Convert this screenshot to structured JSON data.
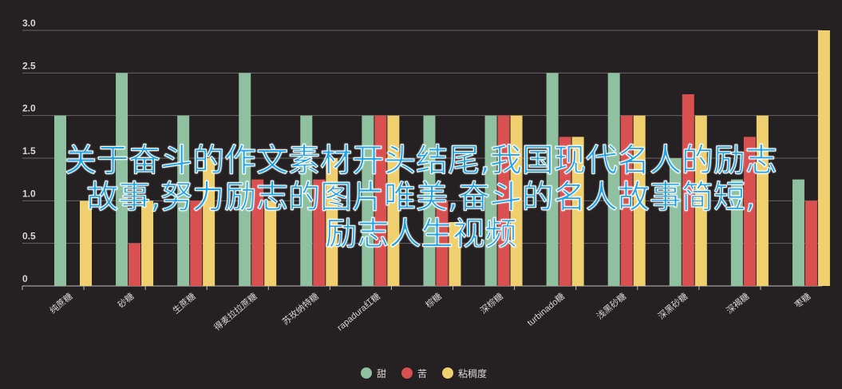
{
  "chart_data": {
    "type": "bar",
    "categories": [
      "纯蔗糖",
      "砂糖",
      "生蔗糖",
      "得麦拉拉蔗糖",
      "苏玫纳特糖",
      "rapadura红糖",
      "棕糖",
      "深棕糖",
      "turbinado糖",
      "浅黑砂糖",
      "深黑砂糖",
      "深褐糖",
      "枣糖"
    ],
    "series": [
      {
        "name": "甜",
        "color": "#8fc1a0",
        "values": [
          2.0,
          2.5,
          2.0,
          2.5,
          2.0,
          2.0,
          2.0,
          2.0,
          2.5,
          2.5,
          1.5,
          1.25,
          1.25
        ]
      },
      {
        "name": "苦",
        "color": "#d95050",
        "values": [
          0,
          0.5,
          1.0,
          1.25,
          1.25,
          2.0,
          1.0,
          2.0,
          1.75,
          2.0,
          2.25,
          1.75,
          1.0
        ]
      },
      {
        "name": "粘稠度",
        "color": "#f0d06e",
        "values": [
          1.0,
          1.0,
          1.5,
          1.0,
          1.5,
          2.0,
          0.75,
          2.0,
          1.75,
          2.0,
          2.0,
          2.0,
          3.0
        ]
      }
    ],
    "yticks": [
      "0",
      "0.5",
      "1.0",
      "1.5",
      "2.0",
      "2.5",
      "3.0"
    ],
    "ylim": [
      0,
      3
    ],
    "grid": true,
    "legend": "bottom-center"
  },
  "overlay_text": {
    "line1": "关于奋斗的作文素材开头结尾,我国现代名人的励志",
    "line2": "故事,努力励志的图片唯美,奋斗的名人故事简短,",
    "line3": "励志人生视频"
  }
}
